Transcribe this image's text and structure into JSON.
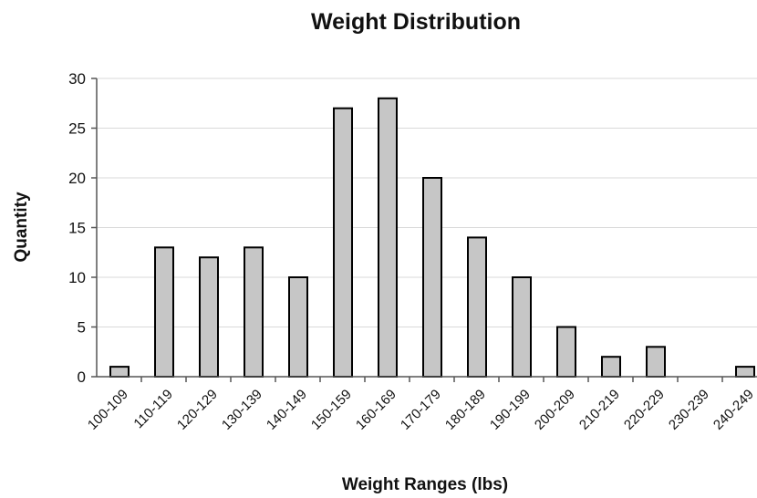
{
  "chart_data": {
    "type": "bar",
    "title": "Weight Distribution",
    "xlabel": "Weight Ranges (lbs)",
    "ylabel": "Quantity",
    "categories": [
      "100-109",
      "110-119",
      "120-129",
      "130-139",
      "140-149",
      "150-159",
      "160-169",
      "170-179",
      "180-189",
      "190-199",
      "200-209",
      "210-219",
      "220-229",
      "230-239",
      "240-249"
    ],
    "values": [
      1,
      13,
      12,
      13,
      10,
      27,
      28,
      20,
      14,
      10,
      5,
      2,
      3,
      0,
      1
    ],
    "ylim": [
      0,
      30
    ],
    "yticks": [
      0,
      5,
      10,
      15,
      20,
      25,
      30
    ],
    "grid": true,
    "legend": "none"
  }
}
